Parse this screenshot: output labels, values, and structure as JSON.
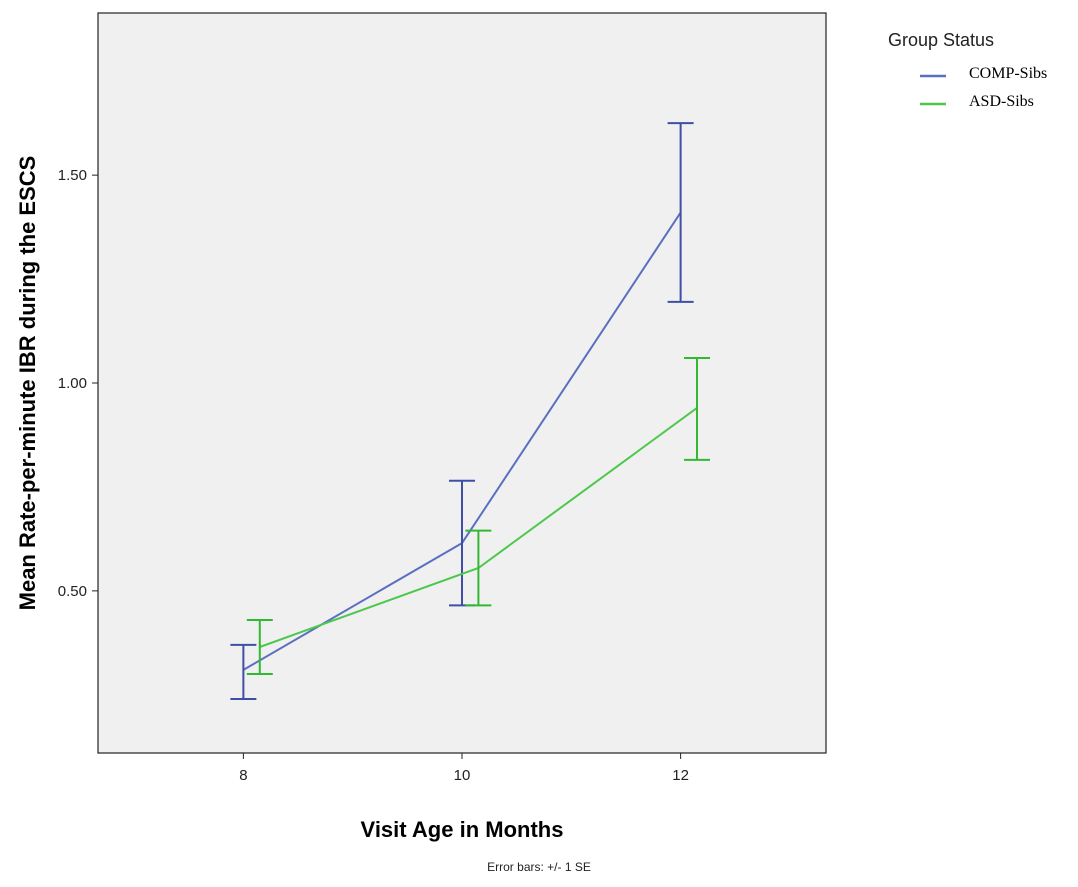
{
  "chart_data": {
    "type": "line",
    "xlabel": "Visit Age in Months",
    "ylabel": "Mean Rate-per-minute IBR during the ESCS",
    "xlim": [
      6.67,
      13.33
    ],
    "ylim": [
      0.11,
      1.89
    ],
    "x_ticks": [
      "8",
      "10",
      "12"
    ],
    "y_ticks": [
      "0.50",
      "1.00",
      "1.50"
    ],
    "legend_title": "Group Status",
    "legend_position": "top-right",
    "footnote": "Error bars: +/- 1 SE",
    "grid": false,
    "series": [
      {
        "name": "COMP-Sibs",
        "color": "#5B6FC0",
        "errorbar_color": "#3F4FA6",
        "x_offset": 0,
        "points": [
          {
            "x": 8,
            "y": 0.31,
            "low": 0.24,
            "high": 0.37
          },
          {
            "x": 10,
            "y": 0.615,
            "low": 0.465,
            "high": 0.765
          },
          {
            "x": 12,
            "y": 1.41,
            "low": 1.195,
            "high": 1.625
          }
        ]
      },
      {
        "name": "ASD-Sibs",
        "color": "#4CC84C",
        "errorbar_color": "#33B833",
        "x_offset": 0.15,
        "points": [
          {
            "x": 8,
            "y": 0.365,
            "low": 0.3,
            "high": 0.43
          },
          {
            "x": 10,
            "y": 0.555,
            "low": 0.465,
            "high": 0.645
          },
          {
            "x": 12,
            "y": 0.94,
            "low": 0.815,
            "high": 1.06
          }
        ]
      }
    ]
  }
}
